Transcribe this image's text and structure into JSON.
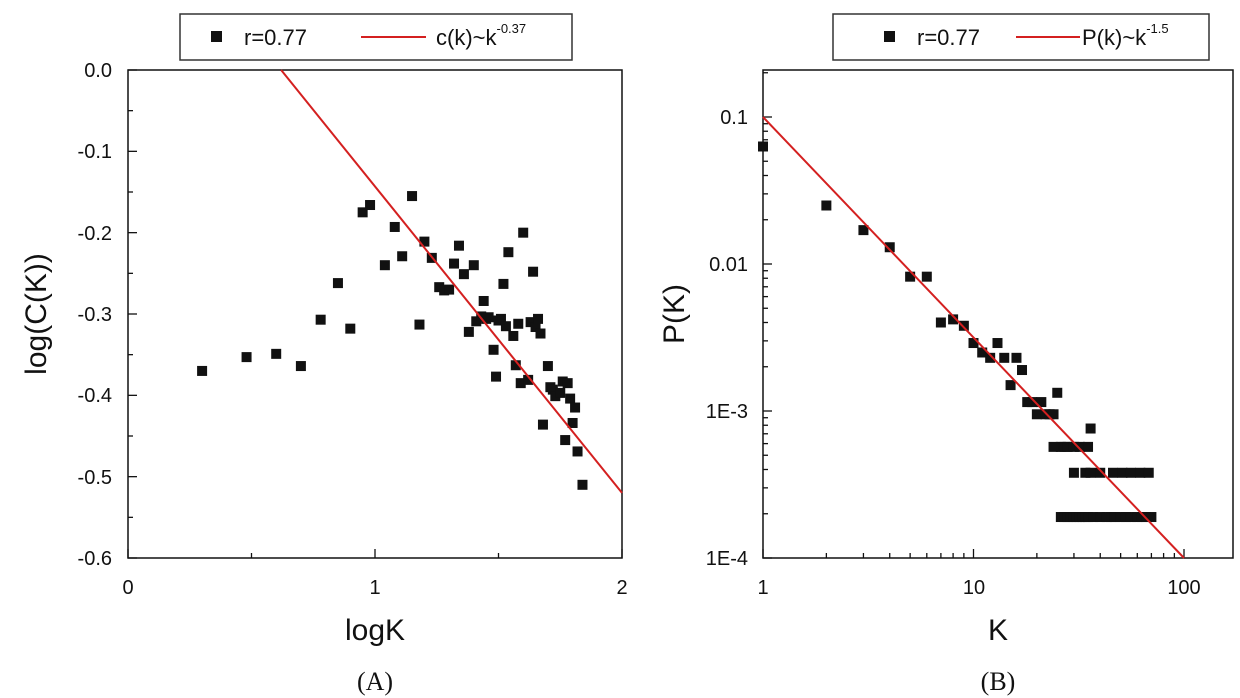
{
  "chart_data": [
    {
      "type": "scatter",
      "panel_label": "(A)",
      "xlabel": "logK",
      "ylabel": "log(C(K))",
      "xlim": [
        0,
        2
      ],
      "ylim": [
        -0.6,
        0.0
      ],
      "x_ticks": [
        "0",
        "1",
        "2"
      ],
      "y_ticks": [
        "0.0",
        "-0.1",
        "-0.2",
        "-0.3",
        "-0.4",
        "-0.5",
        "-0.6"
      ],
      "legend": {
        "placement": "above plot",
        "scatter_label": "r=0.77",
        "fit_label": "c(k)~k",
        "fit_exponent": "-0.37"
      },
      "series": [
        {
          "kind": "points",
          "x": [
            0.3,
            0.48,
            0.6,
            0.7,
            0.78,
            0.85,
            0.9,
            0.95,
            0.98,
            1.04,
            1.08,
            1.11,
            1.15,
            1.18,
            1.2,
            1.23,
            1.26,
            1.28,
            1.3,
            1.32,
            1.34,
            1.36,
            1.38,
            1.4,
            1.41,
            1.43,
            1.44,
            1.45,
            1.46,
            1.48,
            1.49,
            1.5,
            1.51,
            1.52,
            1.53,
            1.54,
            1.56,
            1.57,
            1.58,
            1.59,
            1.6,
            1.62,
            1.63,
            1.64,
            1.65,
            1.66,
            1.67,
            1.68,
            1.7,
            1.71,
            1.72,
            1.73,
            1.75,
            1.76,
            1.77,
            1.78,
            1.79,
            1.8,
            1.81,
            1.82,
            1.84
          ],
          "y": [
            -0.37,
            -0.353,
            -0.349,
            -0.364,
            -0.307,
            -0.262,
            -0.318,
            -0.175,
            -0.166,
            -0.24,
            -0.193,
            -0.229,
            -0.155,
            -0.313,
            -0.211,
            -0.231,
            -0.267,
            -0.271,
            -0.27,
            -0.238,
            -0.216,
            -0.251,
            -0.322,
            -0.24,
            -0.309,
            -0.303,
            -0.284,
            -0.306,
            -0.304,
            -0.344,
            -0.377,
            -0.308,
            -0.306,
            -0.263,
            -0.315,
            -0.224,
            -0.327,
            -0.363,
            -0.312,
            -0.385,
            -0.2,
            -0.381,
            -0.31,
            -0.248,
            -0.316,
            -0.306,
            -0.324,
            -0.436,
            -0.364,
            -0.39,
            -0.393,
            -0.401,
            -0.397,
            -0.383,
            -0.455,
            -0.385,
            -0.404,
            -0.434,
            -0.415,
            -0.469,
            -0.51
          ]
        },
        {
          "kind": "line",
          "x": [
            0.62,
            2.0
          ],
          "y": [
            0.0,
            -0.52
          ]
        }
      ]
    },
    {
      "type": "scatter",
      "panel_label": "(B)",
      "xlabel": "K",
      "ylabel": "P(K)",
      "x_scale": "log",
      "y_scale": "log",
      "xlim": [
        1,
        200
      ],
      "ylim": [
        0.0001,
        0.2
      ],
      "x_ticks": [
        "1",
        "10",
        "100"
      ],
      "y_ticks": [
        "0.1",
        "0.01",
        "1E-3",
        "1E-4"
      ],
      "legend": {
        "placement": "above plot",
        "scatter_label": "r=0.77",
        "fit_label": "P(k)~k",
        "fit_exponent": "-1.5"
      },
      "series": [
        {
          "kind": "points",
          "x": [
            1,
            2,
            3,
            4,
            5,
            6,
            7,
            8,
            9,
            10,
            11,
            12,
            13,
            14,
            15,
            16,
            17,
            18,
            19,
            20,
            21,
            22,
            23,
            24,
            25,
            26,
            27,
            28,
            30,
            32,
            35,
            36,
            24,
            26,
            27,
            28,
            29,
            30,
            31,
            32,
            33,
            34,
            35,
            37,
            40,
            43,
            45,
            47,
            50,
            53,
            56,
            60,
            63,
            66,
            70,
            30,
            34,
            36,
            40,
            46,
            51,
            56,
            62,
            68
          ],
          "y": [
            0.063,
            0.025,
            0.017,
            0.013,
            0.0082,
            0.0082,
            0.004,
            0.0042,
            0.0038,
            0.0029,
            0.0025,
            0.0023,
            0.0029,
            0.0023,
            0.0015,
            0.0023,
            0.0019,
            0.00115,
            0.00115,
            0.00095,
            0.00115,
            0.00095,
            0.00095,
            0.00095,
            0.00133,
            0.00057,
            0.00057,
            0.00057,
            0.00057,
            0.00057,
            0.00057,
            0.00076,
            0.00057,
            0.00019,
            0.00019,
            0.00019,
            0.00019,
            0.00019,
            0.00019,
            0.00019,
            0.00019,
            0.00019,
            0.00019,
            0.00019,
            0.00019,
            0.00019,
            0.00019,
            0.00019,
            0.00019,
            0.00019,
            0.00019,
            0.00019,
            0.00019,
            0.00019,
            0.00019,
            0.00038,
            0.00038,
            0.00038,
            0.00038,
            0.00038,
            0.00038,
            0.00038,
            0.00038,
            0.00038
          ]
        },
        {
          "kind": "line",
          "x": [
            1,
            100
          ],
          "y": [
            0.1,
            0.0001
          ]
        }
      ]
    }
  ],
  "colors": {
    "axis": "#111111",
    "marker": "#111111",
    "fit_line": "#d42020",
    "legend_border": "#333333"
  }
}
